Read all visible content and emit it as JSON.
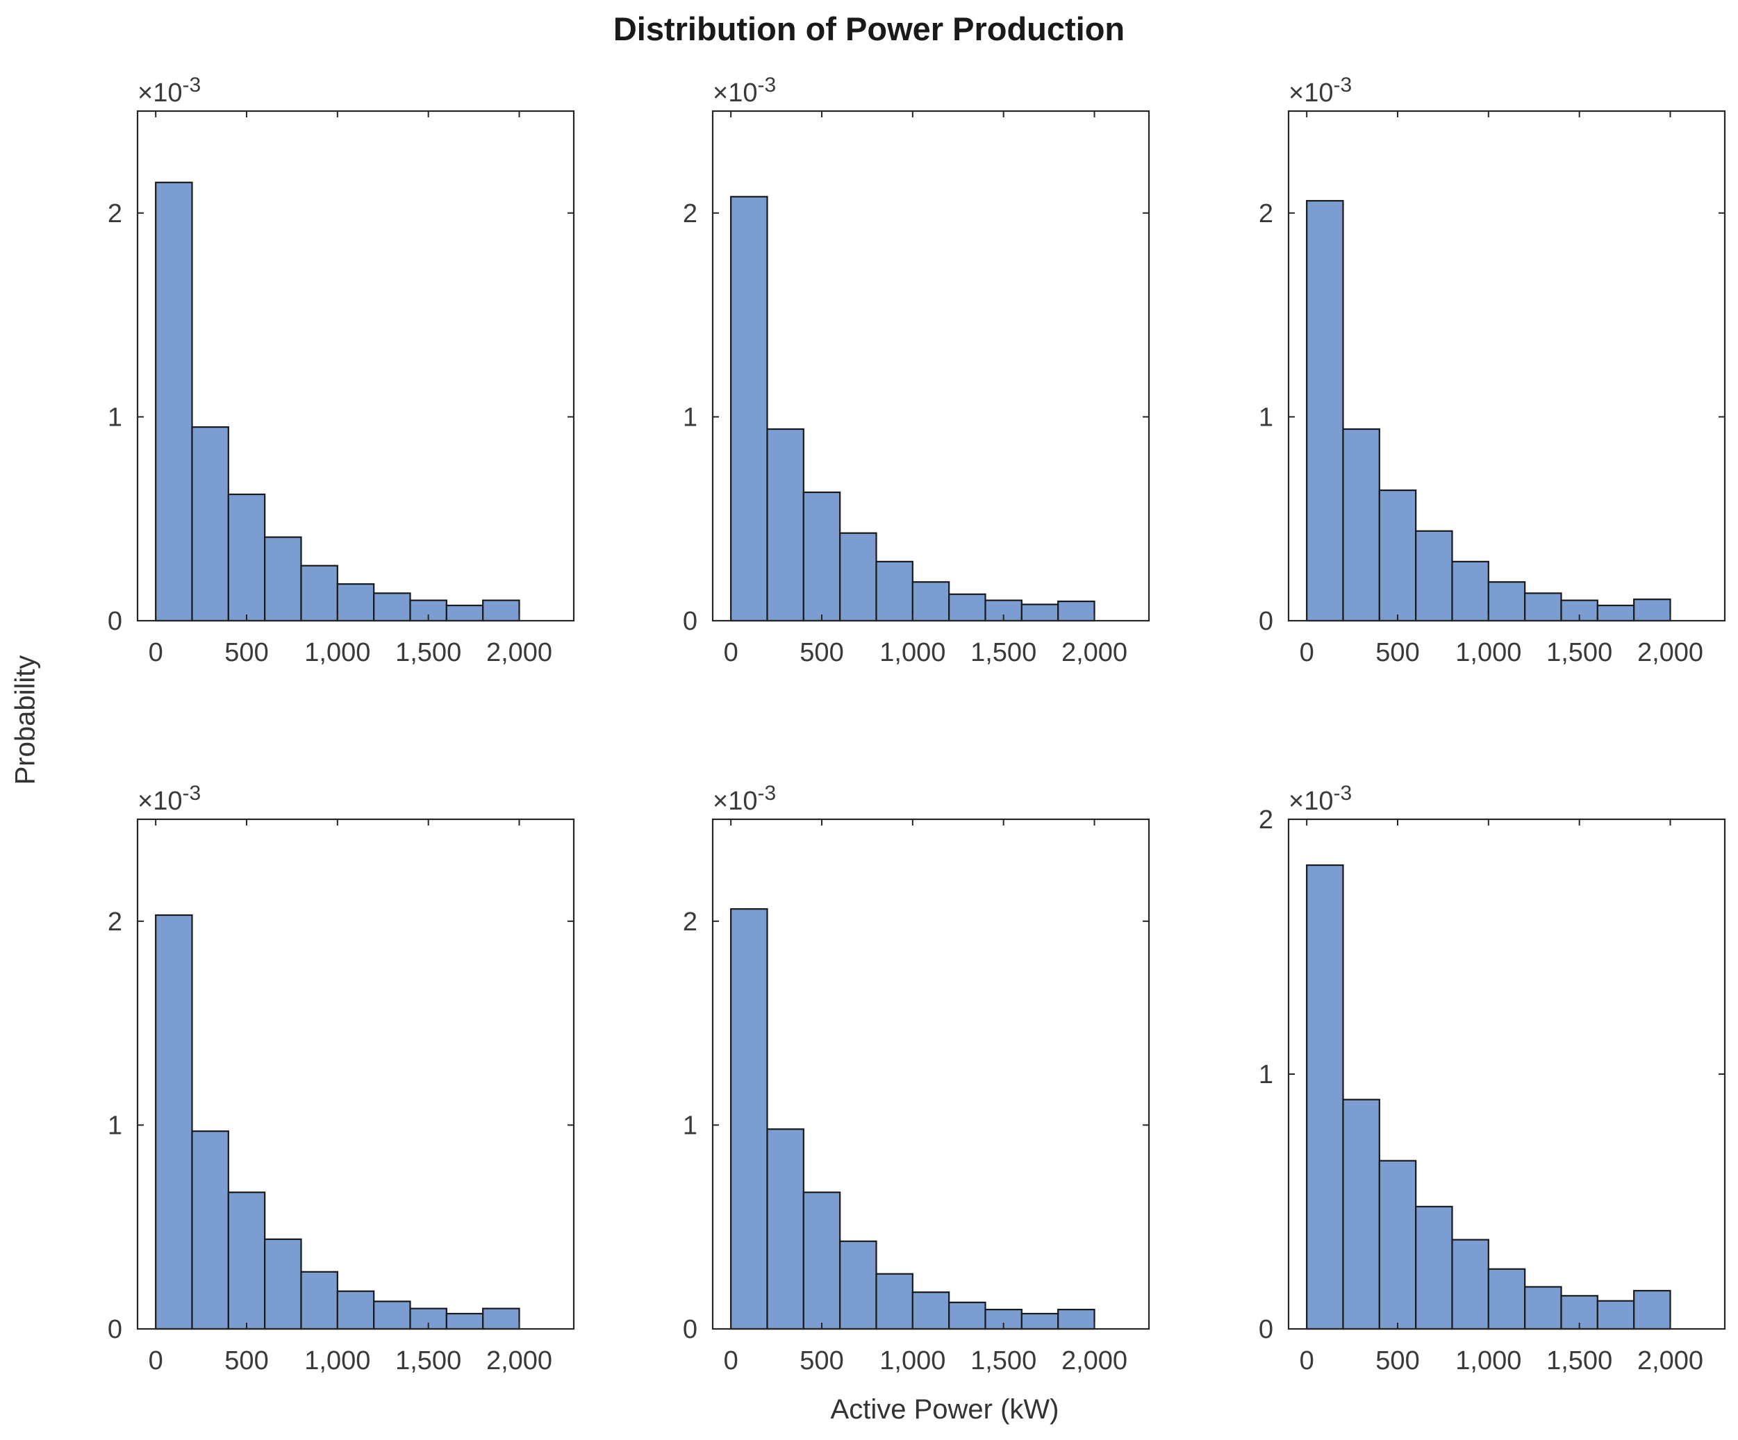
{
  "figure": {
    "title": "Distribution of Power Production",
    "xlabel": "Active Power (kW)",
    "ylabel": "Probability",
    "colors": {
      "bar_fill": "#7b9dd2",
      "bar_edge": "#1a1a1a",
      "axis": "#262626",
      "text": "#3a3a3a"
    }
  },
  "chart_data": [
    {
      "type": "bar",
      "panel": "top-left",
      "bin_edges": [
        0,
        200,
        400,
        600,
        800,
        1000,
        1200,
        1400,
        1600,
        1800,
        2000
      ],
      "values": [
        2.15,
        0.95,
        0.62,
        0.41,
        0.27,
        0.18,
        0.135,
        0.1,
        0.075,
        0.1
      ],
      "xlim": [
        -100,
        2300
      ],
      "ylim": [
        0,
        2.5
      ],
      "xticks": [
        0,
        500,
        1000,
        1500,
        2000
      ],
      "xtick_labels": [
        "0",
        "500",
        "1,000",
        "1,500",
        "2,000"
      ],
      "yticks": [
        0,
        1,
        2
      ],
      "ytick_labels": [
        "0",
        "1",
        "2"
      ],
      "exponent_label": "×10",
      "exponent_power": "-3"
    },
    {
      "type": "bar",
      "panel": "top-middle",
      "bin_edges": [
        0,
        200,
        400,
        600,
        800,
        1000,
        1200,
        1400,
        1600,
        1800,
        2000
      ],
      "values": [
        2.08,
        0.94,
        0.63,
        0.43,
        0.29,
        0.19,
        0.13,
        0.1,
        0.08,
        0.095
      ],
      "xlim": [
        -100,
        2300
      ],
      "ylim": [
        0,
        2.5
      ],
      "xticks": [
        0,
        500,
        1000,
        1500,
        2000
      ],
      "xtick_labels": [
        "0",
        "500",
        "1,000",
        "1,500",
        "2,000"
      ],
      "yticks": [
        0,
        1,
        2
      ],
      "ytick_labels": [
        "0",
        "1",
        "2"
      ],
      "exponent_label": "×10",
      "exponent_power": "-3"
    },
    {
      "type": "bar",
      "panel": "top-right",
      "bin_edges": [
        0,
        200,
        400,
        600,
        800,
        1000,
        1200,
        1400,
        1600,
        1800,
        2000
      ],
      "values": [
        2.06,
        0.94,
        0.64,
        0.44,
        0.29,
        0.19,
        0.135,
        0.1,
        0.075,
        0.105
      ],
      "xlim": [
        -100,
        2300
      ],
      "ylim": [
        0,
        2.5
      ],
      "xticks": [
        0,
        500,
        1000,
        1500,
        2000
      ],
      "xtick_labels": [
        "0",
        "500",
        "1,000",
        "1,500",
        "2,000"
      ],
      "yticks": [
        0,
        1,
        2
      ],
      "ytick_labels": [
        "0",
        "1",
        "2"
      ],
      "exponent_label": "×10",
      "exponent_power": "-3"
    },
    {
      "type": "bar",
      "panel": "bottom-left",
      "bin_edges": [
        0,
        200,
        400,
        600,
        800,
        1000,
        1200,
        1400,
        1600,
        1800,
        2000
      ],
      "values": [
        2.03,
        0.97,
        0.67,
        0.44,
        0.28,
        0.185,
        0.135,
        0.1,
        0.075,
        0.1
      ],
      "xlim": [
        -100,
        2300
      ],
      "ylim": [
        0,
        2.5
      ],
      "xticks": [
        0,
        500,
        1000,
        1500,
        2000
      ],
      "xtick_labels": [
        "0",
        "500",
        "1,000",
        "1,500",
        "2,000"
      ],
      "yticks": [
        0,
        1,
        2
      ],
      "ytick_labels": [
        "0",
        "1",
        "2"
      ],
      "exponent_label": "×10",
      "exponent_power": "-3"
    },
    {
      "type": "bar",
      "panel": "bottom-middle",
      "bin_edges": [
        0,
        200,
        400,
        600,
        800,
        1000,
        1200,
        1400,
        1600,
        1800,
        2000
      ],
      "values": [
        2.06,
        0.98,
        0.67,
        0.43,
        0.27,
        0.18,
        0.13,
        0.095,
        0.075,
        0.095
      ],
      "xlim": [
        -100,
        2300
      ],
      "ylim": [
        0,
        2.5
      ],
      "xticks": [
        0,
        500,
        1000,
        1500,
        2000
      ],
      "xtick_labels": [
        "0",
        "500",
        "1,000",
        "1,500",
        "2,000"
      ],
      "yticks": [
        0,
        1,
        2
      ],
      "ytick_labels": [
        "0",
        "1",
        "2"
      ],
      "exponent_label": "×10",
      "exponent_power": "-3"
    },
    {
      "type": "bar",
      "panel": "bottom-right",
      "bin_edges": [
        0,
        200,
        400,
        600,
        800,
        1000,
        1200,
        1400,
        1600,
        1800,
        2000
      ],
      "values": [
        1.82,
        0.9,
        0.66,
        0.48,
        0.35,
        0.235,
        0.165,
        0.13,
        0.11,
        0.15
      ],
      "xlim": [
        -100,
        2300
      ],
      "ylim": [
        0,
        2
      ],
      "xticks": [
        0,
        500,
        1000,
        1500,
        2000
      ],
      "xtick_labels": [
        "0",
        "500",
        "1,000",
        "1,500",
        "2,000"
      ],
      "yticks": [
        0,
        1,
        2
      ],
      "ytick_labels": [
        "0",
        "1",
        "2"
      ],
      "exponent_label": "×10",
      "exponent_power": "-3"
    }
  ]
}
